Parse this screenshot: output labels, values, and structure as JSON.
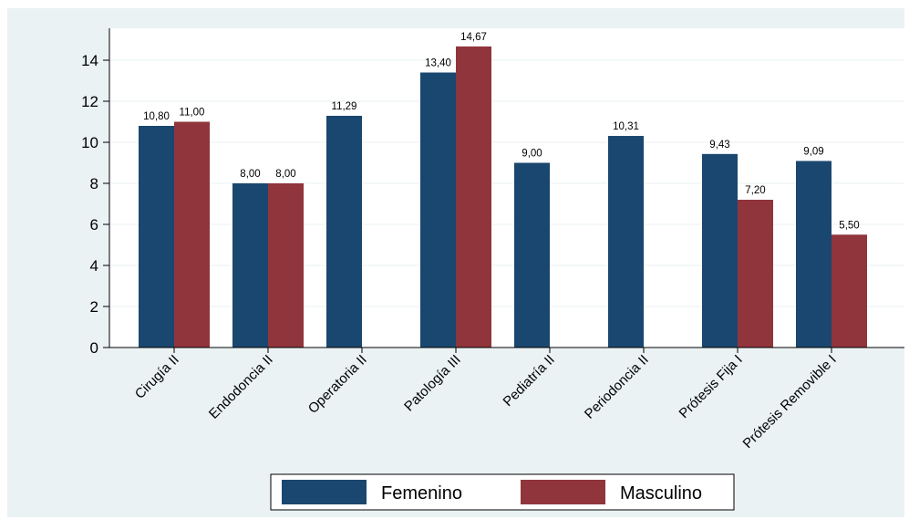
{
  "chart_data": {
    "type": "bar",
    "categories": [
      "Cirugía II",
      "Endodoncia II",
      "Operatoria II",
      "Patología III",
      "Pediatría II",
      "Periodoncia II",
      "Prótesis Fija I",
      "Prótesis Removible I"
    ],
    "series": [
      {
        "name": "Femenino",
        "color": "#1a476f",
        "values": [
          10.8,
          8.0,
          11.29,
          13.4,
          9.0,
          10.31,
          9.43,
          9.09
        ],
        "labels": [
          "10,80",
          "8,00",
          "11,29",
          "13,40",
          "9,00",
          "10,31",
          "9,43",
          "9,09"
        ]
      },
      {
        "name": "Masculino",
        "color": "#90353b",
        "values": [
          11.0,
          8.0,
          null,
          14.67,
          null,
          null,
          7.2,
          5.5
        ],
        "labels": [
          "11,00",
          "8,00",
          null,
          "14,67",
          null,
          null,
          "7,20",
          "5,50"
        ]
      }
    ],
    "y_ticks": [
      0,
      2,
      4,
      6,
      8,
      10,
      12,
      14
    ],
    "ylim": [
      0,
      15.2
    ],
    "grid": true,
    "legend_position": "bottom"
  },
  "colors": {
    "background": "#eaf2f3",
    "plot_background": "#ffffff",
    "grid": "#eaf2f3"
  }
}
